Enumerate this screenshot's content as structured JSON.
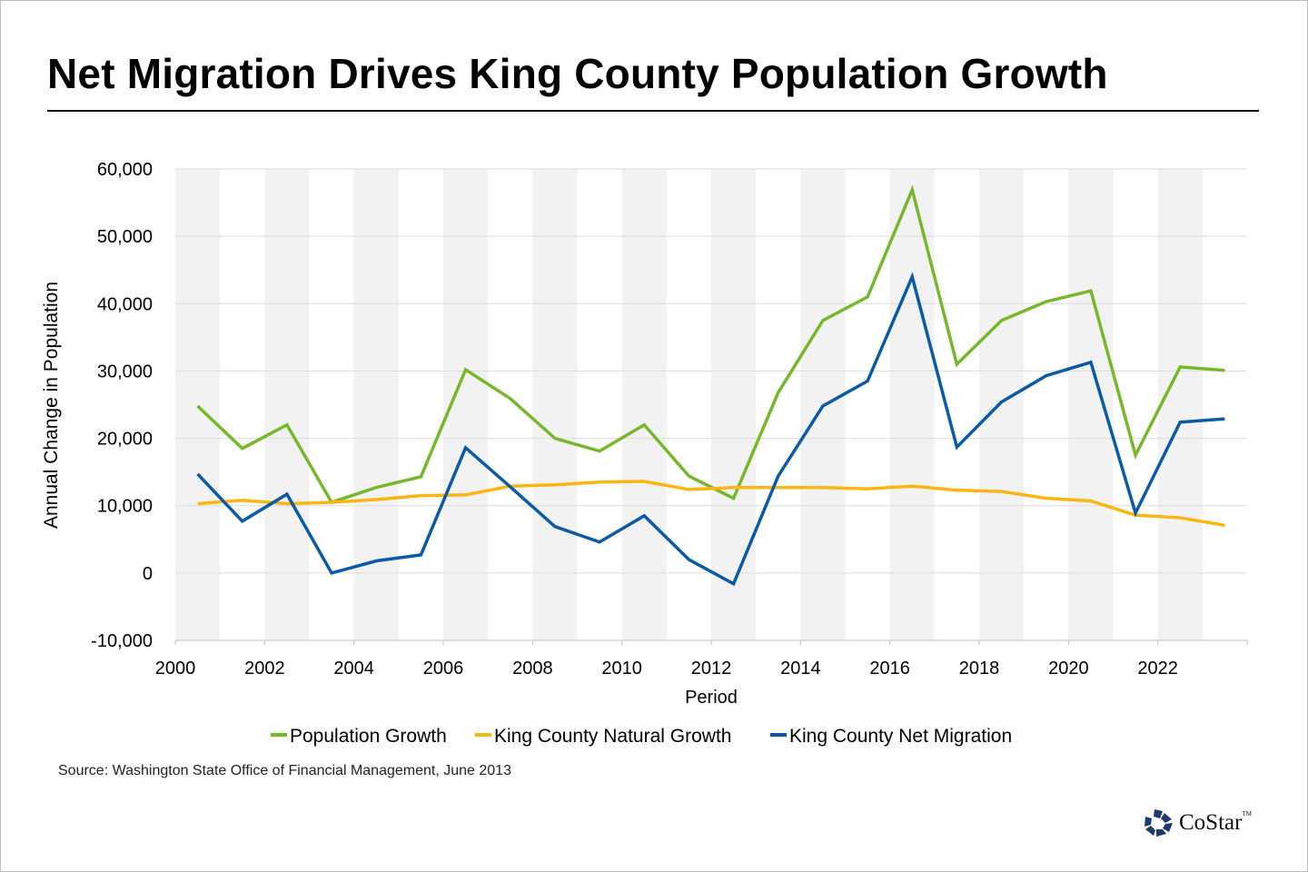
{
  "title": "Net Migration Drives King County Population Growth",
  "source": "Source: Washington State Office of Financial Management, June 2013",
  "logo": "CoStar",
  "chart_data": {
    "type": "line",
    "title": "Net Migration Drives King County Population Growth",
    "xlabel": "Period",
    "ylabel": "Annual Change in Population",
    "xlim": [
      2000,
      2024
    ],
    "ylim": [
      -10000,
      60000
    ],
    "x_ticks": [
      "2000",
      "2002",
      "2004",
      "2006",
      "2008",
      "2010",
      "2012",
      "2014",
      "2016",
      "2018",
      "2020",
      "2022"
    ],
    "y_ticks": [
      "60,000",
      "50,000",
      "40,000",
      "30,000",
      "20,000",
      "10,000",
      "0",
      "-10,000"
    ],
    "grid": true,
    "shaded_bands": "alternating years",
    "legend_position": "bottom",
    "x": [
      2000.5,
      2001.5,
      2002.5,
      2003.5,
      2004.5,
      2005.5,
      2006.5,
      2007.5,
      2008.5,
      2009.5,
      2010.5,
      2011.5,
      2012.5,
      2013.5,
      2014.5,
      2015.5,
      2016.5,
      2017.5,
      2018.5,
      2019.5,
      2020.5,
      2021.5,
      2022.5,
      2023.5
    ],
    "series": [
      {
        "name": "Population Growth",
        "color": "#76b82a",
        "values": [
          24800,
          18500,
          22000,
          10500,
          12700,
          14300,
          30200,
          25900,
          20000,
          18100,
          22000,
          14400,
          11100,
          26800,
          37500,
          41000,
          56900,
          31000,
          37500,
          40300,
          41900,
          17500,
          30600,
          30100
        ]
      },
      {
        "name": "King County Natural Growth",
        "color": "#fbb614",
        "values": [
          10300,
          10800,
          10300,
          10500,
          10900,
          11500,
          11600,
          12900,
          13100,
          13500,
          13600,
          12400,
          12700,
          12700,
          12700,
          12500,
          12900,
          12300,
          12100,
          11100,
          10700,
          8600,
          8200,
          7100
        ]
      },
      {
        "name": "King County Net Migration",
        "color": "#0b5aa8",
        "values": [
          14700,
          7700,
          11700,
          0,
          1800,
          2700,
          18600,
          12800,
          6900,
          4600,
          8500,
          2000,
          -1600,
          14400,
          24800,
          28500,
          44000,
          18700,
          25400,
          29300,
          31300,
          8900,
          22400,
          22900
        ]
      }
    ]
  }
}
